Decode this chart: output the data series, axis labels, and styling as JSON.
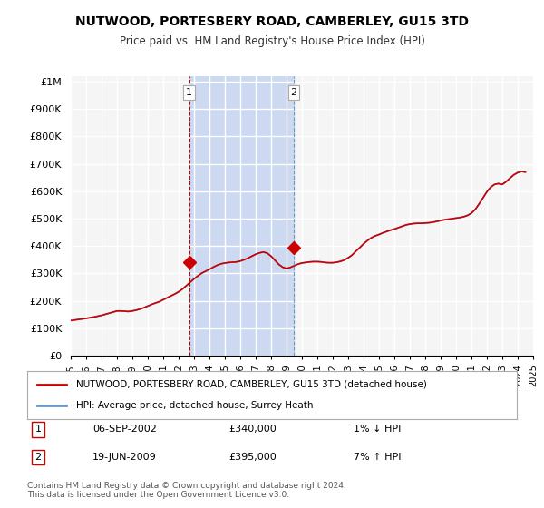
{
  "title": "NUTWOOD, PORTESBERY ROAD, CAMBERLEY, GU15 3TD",
  "subtitle": "Price paid vs. HM Land Registry's House Price Index (HPI)",
  "legend_label_red": "NUTWOOD, PORTESBERY ROAD, CAMBERLEY, GU15 3TD (detached house)",
  "legend_label_blue": "HPI: Average price, detached house, Surrey Heath",
  "transaction1_label": "1",
  "transaction1_date": "06-SEP-2002",
  "transaction1_price": "£340,000",
  "transaction1_hpi": "1% ↓ HPI",
  "transaction2_label": "2",
  "transaction2_date": "19-JUN-2009",
  "transaction2_price": "£395,000",
  "transaction2_hpi": "7% ↑ HPI",
  "footnote": "Contains HM Land Registry data © Crown copyright and database right 2024.\nThis data is licensed under the Open Government Licence v3.0.",
  "yticks": [
    0,
    100000,
    200000,
    300000,
    400000,
    500000,
    600000,
    700000,
    800000,
    900000,
    1000000
  ],
  "ytick_labels": [
    "£0",
    "£100K",
    "£200K",
    "£300K",
    "£400K",
    "£500K",
    "£600K",
    "£700K",
    "£800K",
    "£900K",
    "£1M"
  ],
  "xmin": 1995,
  "xmax": 2025,
  "ymin": 0,
  "ymax": 1000000,
  "sale1_x": 2002.68,
  "sale1_y": 340000,
  "sale2_x": 2009.47,
  "sale2_y": 395000,
  "vline1_x": 2002.68,
  "vline2_x": 2009.47,
  "shade_color": "#ccd9f0",
  "red_color": "#cc0000",
  "blue_color": "#6699cc",
  "background_color": "#ffffff",
  "plot_bg_color": "#f5f5f5",
  "grid_color": "#ffffff",
  "hpi_years": [
    1995,
    1995.25,
    1995.5,
    1995.75,
    1996,
    1996.25,
    1996.5,
    1996.75,
    1997,
    1997.25,
    1997.5,
    1997.75,
    1998,
    1998.25,
    1998.5,
    1998.75,
    1999,
    1999.25,
    1999.5,
    1999.75,
    2000,
    2000.25,
    2000.5,
    2000.75,
    2001,
    2001.25,
    2001.5,
    2001.75,
    2002,
    2002.25,
    2002.5,
    2002.75,
    2003,
    2003.25,
    2003.5,
    2003.75,
    2004,
    2004.25,
    2004.5,
    2004.75,
    2005,
    2005.25,
    2005.5,
    2005.75,
    2006,
    2006.25,
    2006.5,
    2006.75,
    2007,
    2007.25,
    2007.5,
    2007.75,
    2008,
    2008.25,
    2008.5,
    2008.75,
    2009,
    2009.25,
    2009.5,
    2009.75,
    2010,
    2010.25,
    2010.5,
    2010.75,
    2011,
    2011.25,
    2011.5,
    2011.75,
    2012,
    2012.25,
    2012.5,
    2012.75,
    2013,
    2013.25,
    2013.5,
    2013.75,
    2014,
    2014.25,
    2014.5,
    2014.75,
    2015,
    2015.25,
    2015.5,
    2015.75,
    2016,
    2016.25,
    2016.5,
    2016.75,
    2017,
    2017.25,
    2017.5,
    2017.75,
    2018,
    2018.25,
    2018.5,
    2018.75,
    2019,
    2019.25,
    2019.5,
    2019.75,
    2020,
    2020.25,
    2020.5,
    2020.75,
    2021,
    2021.25,
    2021.5,
    2021.75,
    2022,
    2022.25,
    2022.5,
    2022.75,
    2023,
    2023.25,
    2023.5,
    2023.75,
    2024,
    2024.25,
    2024.5
  ],
  "hpi_values": [
    128000,
    130000,
    132000,
    134000,
    136000,
    138500,
    141000,
    144000,
    147000,
    151000,
    155000,
    159000,
    163000,
    163000,
    162000,
    161000,
    163000,
    166000,
    170000,
    175000,
    181000,
    187000,
    192000,
    197000,
    204000,
    211000,
    218000,
    225000,
    233000,
    243000,
    255000,
    268000,
    280000,
    291000,
    301000,
    308000,
    315000,
    323000,
    330000,
    335000,
    338000,
    340000,
    341000,
    342000,
    345000,
    350000,
    356000,
    363000,
    370000,
    375000,
    378000,
    374000,
    363000,
    348000,
    333000,
    323000,
    318000,
    322000,
    328000,
    334000,
    338000,
    340000,
    342000,
    343000,
    343000,
    342000,
    340000,
    339000,
    339000,
    341000,
    344000,
    349000,
    357000,
    367000,
    381000,
    394000,
    408000,
    420000,
    430000,
    437000,
    442000,
    448000,
    453000,
    458000,
    462000,
    467000,
    472000,
    477000,
    480000,
    482000,
    483000,
    483000,
    484000,
    485000,
    487000,
    490000,
    493000,
    496000,
    498000,
    500000,
    502000,
    504000,
    507000,
    512000,
    520000,
    534000,
    554000,
    576000,
    598000,
    615000,
    625000,
    628000,
    625000,
    635000,
    648000,
    660000,
    668000,
    672000,
    670000
  ],
  "price_years": [
    1995,
    1995.25,
    1995.5,
    1995.75,
    1996,
    1996.25,
    1996.5,
    1996.75,
    1997,
    1997.25,
    1997.5,
    1997.75,
    1998,
    1998.25,
    1998.5,
    1998.75,
    1999,
    1999.25,
    1999.5,
    1999.75,
    2000,
    2000.25,
    2000.5,
    2000.75,
    2001,
    2001.25,
    2001.5,
    2001.75,
    2002,
    2002.25,
    2002.5,
    2002.75,
    2003,
    2003.25,
    2003.5,
    2003.75,
    2004,
    2004.25,
    2004.5,
    2004.75,
    2005,
    2005.25,
    2005.5,
    2005.75,
    2006,
    2006.25,
    2006.5,
    2006.75,
    2007,
    2007.25,
    2007.5,
    2007.75,
    2008,
    2008.25,
    2008.5,
    2008.75,
    2009,
    2009.25,
    2009.5,
    2009.75,
    2010,
    2010.25,
    2010.5,
    2010.75,
    2011,
    2011.25,
    2011.5,
    2011.75,
    2012,
    2012.25,
    2012.5,
    2012.75,
    2013,
    2013.25,
    2013.5,
    2013.75,
    2014,
    2014.25,
    2014.5,
    2014.75,
    2015,
    2015.25,
    2015.5,
    2015.75,
    2016,
    2016.25,
    2016.5,
    2016.75,
    2017,
    2017.25,
    2017.5,
    2017.75,
    2018,
    2018.25,
    2018.5,
    2018.75,
    2019,
    2019.25,
    2019.5,
    2019.75,
    2020,
    2020.25,
    2020.5,
    2020.75,
    2021,
    2021.25,
    2021.5,
    2021.75,
    2022,
    2022.25,
    2022.5,
    2022.75,
    2023,
    2023.25,
    2023.5,
    2023.75,
    2024,
    2024.25,
    2024.5
  ],
  "price_values": [
    128000,
    130000,
    132000,
    134000,
    136000,
    138500,
    141000,
    144000,
    147000,
    151000,
    155000,
    159000,
    163000,
    163000,
    162000,
    161000,
    163000,
    166000,
    170000,
    175000,
    181000,
    187000,
    192000,
    197000,
    204000,
    211000,
    218000,
    225000,
    233000,
    243000,
    255000,
    268000,
    280000,
    291000,
    301000,
    308000,
    315000,
    323000,
    330000,
    335000,
    338000,
    340000,
    341000,
    342000,
    345000,
    350000,
    356000,
    363000,
    370000,
    375000,
    378000,
    374000,
    363000,
    348000,
    333000,
    323000,
    318000,
    322000,
    328000,
    334000,
    338000,
    340000,
    342000,
    343000,
    343000,
    342000,
    340000,
    339000,
    339000,
    341000,
    344000,
    349000,
    357000,
    367000,
    381000,
    394000,
    408000,
    420000,
    430000,
    437000,
    442000,
    448000,
    453000,
    458000,
    462000,
    467000,
    472000,
    477000,
    480000,
    482000,
    483000,
    483000,
    484000,
    485000,
    487000,
    490000,
    493000,
    496000,
    498000,
    500000,
    502000,
    504000,
    507000,
    512000,
    520000,
    534000,
    554000,
    576000,
    598000,
    615000,
    625000,
    628000,
    625000,
    635000,
    648000,
    660000,
    668000,
    672000,
    670000
  ]
}
